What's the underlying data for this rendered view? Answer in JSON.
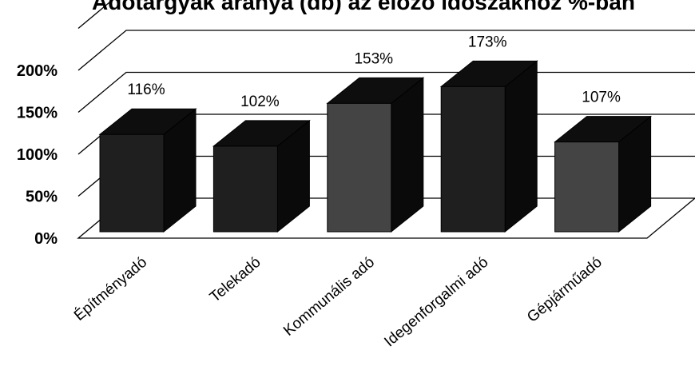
{
  "chart_data": {
    "type": "bar",
    "title": "Adótárgyak aránya (db) az előző időszakhoz %-ban",
    "categories": [
      "Építményadó",
      "Telekadó",
      "Kommunális adó",
      "Idegenforgalmi adó",
      "Gépjárműadó"
    ],
    "values": [
      116,
      102,
      153,
      173,
      107
    ],
    "data_labels": [
      "116%",
      "102%",
      "153%",
      "173%",
      "107%"
    ],
    "y_ticks": [
      "0%",
      "50%",
      "100%",
      "150%",
      "200%"
    ],
    "ylim": [
      0,
      250
    ],
    "grid": true,
    "style": "3d"
  },
  "colors": {
    "front": "#1f1f1f",
    "front_light": "#444444",
    "top": "#0e0e0e",
    "side": "#0a0a0a",
    "grid": "#000000"
  }
}
